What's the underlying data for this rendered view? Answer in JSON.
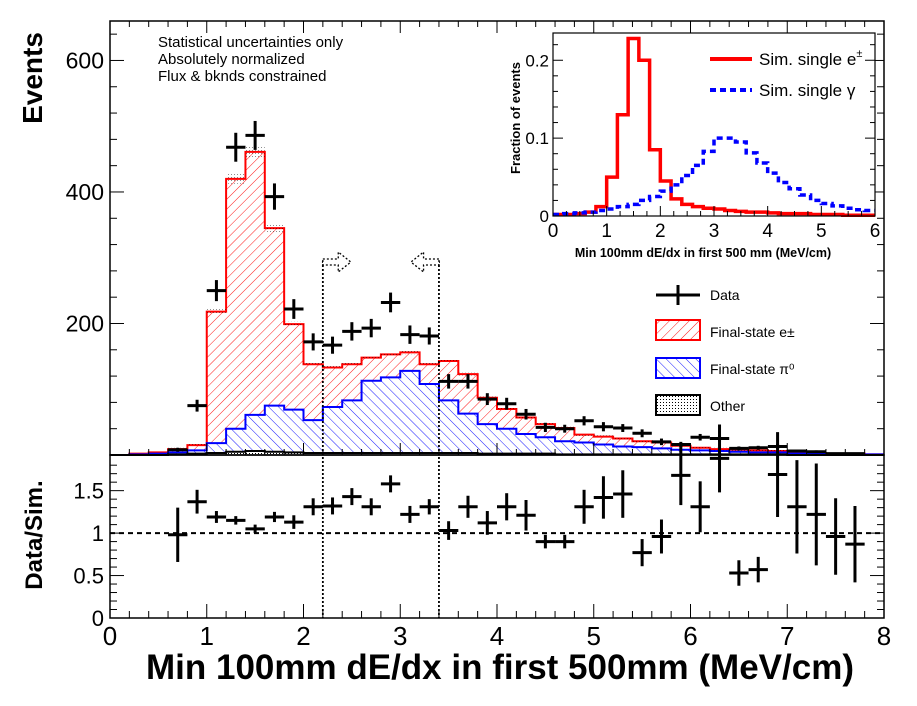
{
  "chart_data": [
    {
      "type": "bar",
      "name": "main",
      "xlabel": "",
      "ylabel": "Events",
      "xlim": [
        0,
        8
      ],
      "ylim": [
        0,
        660
      ],
      "yticks": [
        200,
        400,
        600
      ],
      "annotations": [
        "Statistical uncertainties only",
        "Absolutely normalized",
        "Flux & bknds constrained"
      ],
      "bin_edges": [
        0.0,
        0.2,
        0.4,
        0.6,
        0.8,
        1.0,
        1.2,
        1.4,
        1.6,
        1.8,
        2.0,
        2.2,
        2.4,
        2.6,
        2.8,
        3.0,
        3.2,
        3.4,
        3.6,
        3.8,
        4.0,
        4.2,
        4.4,
        4.6,
        4.8,
        5.0,
        5.2,
        5.4,
        5.6,
        5.8,
        6.0,
        6.2,
        6.4,
        6.6,
        6.8,
        7.0,
        7.2,
        7.4,
        7.6,
        7.8,
        8.0
      ],
      "stack": [
        {
          "name": "Other",
          "values": [
            0,
            0,
            0,
            1,
            2,
            3,
            5,
            6,
            5,
            4,
            3,
            3,
            3,
            3,
            3,
            3,
            3,
            3,
            3,
            2,
            2,
            2,
            2,
            1,
            1,
            1,
            1,
            1,
            1,
            1,
            1,
            1,
            1,
            1,
            1,
            0,
            0,
            0,
            0,
            0
          ]
        },
        {
          "name": "Final-state π⁰",
          "values": [
            0,
            1,
            2,
            3,
            5,
            15,
            35,
            55,
            70,
            65,
            50,
            70,
            80,
            110,
            115,
            125,
            105,
            80,
            60,
            45,
            38,
            30,
            25,
            20,
            18,
            15,
            12,
            11,
            9,
            7,
            6,
            5,
            4,
            3,
            3,
            2,
            2,
            1,
            1,
            1
          ]
        },
        {
          "name": "Final-state e±",
          "values": [
            0,
            1,
            2,
            5,
            8,
            200,
            380,
            400,
            270,
            130,
            85,
            60,
            55,
            35,
            35,
            28,
            30,
            60,
            60,
            40,
            30,
            25,
            20,
            20,
            12,
            12,
            12,
            9,
            9,
            6,
            4,
            3,
            3,
            3,
            2,
            2,
            1,
            1,
            1,
            0
          ]
        }
      ],
      "total_mc": [
        0,
        2,
        4,
        9,
        15,
        218,
        420,
        461,
        345,
        199,
        138,
        133,
        138,
        148,
        153,
        156,
        138,
        143,
        123,
        87,
        70,
        57,
        47,
        41,
        31,
        28,
        25,
        21,
        19,
        14,
        11,
        9,
        8,
        7,
        6,
        4,
        3,
        2,
        2,
        1
      ],
      "data_points": {
        "x": [
          0.7,
          0.9,
          1.1,
          1.3,
          1.5,
          1.7,
          1.9,
          2.1,
          2.3,
          2.5,
          2.7,
          2.9,
          3.1,
          3.3,
          3.5,
          3.7,
          3.9,
          4.1,
          4.3,
          4.5,
          4.7,
          4.9,
          5.1,
          5.3,
          5.5,
          5.7,
          5.9,
          6.1,
          6.3,
          6.5,
          6.7,
          6.9,
          7.1,
          7.3,
          7.5,
          7.7
        ],
        "y": [
          8,
          75,
          250,
          468,
          486,
          393,
          222,
          172,
          167,
          188,
          193,
          232,
          183,
          181,
          112,
          112,
          85,
          78,
          62,
          42,
          40,
          52,
          43,
          41,
          33,
          20,
          16,
          27,
          25,
          10,
          11,
          13,
          6,
          5,
          2,
          2
        ],
        "yerr": [
          3,
          9,
          16,
          22,
          22,
          20,
          15,
          13,
          13,
          14,
          14,
          15,
          14,
          13,
          11,
          11,
          9,
          9,
          8,
          7,
          6,
          7,
          7,
          6,
          6,
          5,
          4,
          5,
          5,
          3,
          3,
          4,
          2,
          2,
          1,
          1
        ]
      },
      "legend": {
        "position": "right",
        "entries": [
          "Data",
          "Final-state e±",
          "Final-state π⁰",
          "Other"
        ]
      },
      "arrows": [
        2.2,
        3.4
      ]
    },
    {
      "type": "scatter",
      "name": "ratio",
      "xlabel": "Min 100mm dE/dx in first 500mm (MeV/cm)",
      "ylabel": "Data/Sim.",
      "xlim": [
        0,
        8
      ],
      "ylim": [
        0,
        1.92
      ],
      "yticks": [
        0,
        0.5,
        1,
        1.5
      ],
      "ytick_labels": [
        "0",
        "0.5",
        "1",
        "1.5"
      ],
      "xticks": [
        0,
        1,
        2,
        3,
        4,
        5,
        6,
        7,
        8
      ],
      "reference_line": 1,
      "x": [
        0.7,
        0.9,
        1.1,
        1.3,
        1.5,
        1.7,
        1.9,
        2.1,
        2.3,
        2.5,
        2.7,
        2.9,
        3.1,
        3.3,
        3.5,
        3.7,
        3.9,
        4.1,
        4.3,
        4.5,
        4.7,
        4.9,
        5.1,
        5.3,
        5.5,
        5.7,
        5.9,
        6.1,
        6.3,
        6.5,
        6.7,
        6.9,
        7.1,
        7.3,
        7.5,
        7.7
      ],
      "y": [
        0.98,
        1.37,
        1.19,
        1.15,
        1.05,
        1.19,
        1.13,
        1.31,
        1.32,
        1.43,
        1.31,
        1.58,
        1.22,
        1.31,
        1.03,
        1.31,
        1.12,
        1.31,
        1.21,
        0.9,
        0.9,
        1.31,
        1.42,
        1.46,
        0.77,
        0.96,
        1.68,
        1.31,
        1.88,
        0.53,
        0.57,
        1.69,
        1.31,
        1.22,
        0.96,
        0.87
      ],
      "yerr": [
        0.32,
        0.14,
        0.07,
        0.05,
        0.05,
        0.06,
        0.08,
        0.1,
        0.1,
        0.1,
        0.1,
        0.1,
        0.1,
        0.09,
        0.11,
        0.13,
        0.14,
        0.16,
        0.18,
        0.08,
        0.08,
        0.2,
        0.25,
        0.28,
        0.16,
        0.2,
        0.35,
        0.3,
        0.4,
        0.15,
        0.15,
        0.5,
        0.55,
        0.6,
        0.45,
        0.45
      ]
    },
    {
      "type": "line",
      "name": "inset",
      "xlabel": "Min 100mm dE/dx in first 500 mm (MeV/cm)",
      "ylabel": "Fraction of events",
      "xlim": [
        0,
        6
      ],
      "ylim": [
        0,
        0.235
      ],
      "xticks": [
        0,
        1,
        2,
        3,
        4,
        5,
        6
      ],
      "yticks": [
        0,
        0.1,
        0.2
      ],
      "ytick_labels": [
        "0",
        "0.1",
        "0.2"
      ],
      "bin_edges": [
        0.0,
        0.2,
        0.4,
        0.6,
        0.8,
        1.0,
        1.2,
        1.4,
        1.6,
        1.8,
        2.0,
        2.2,
        2.4,
        2.6,
        2.8,
        3.0,
        3.2,
        3.4,
        3.6,
        3.8,
        4.0,
        4.2,
        4.4,
        4.6,
        4.8,
        5.0,
        5.2,
        5.4,
        5.6,
        5.8,
        6.0
      ],
      "series": [
        {
          "name": "Sim. single e±",
          "legend_label": "Sim. single e",
          "legend_sup": "±",
          "color": "#ff0000",
          "style": "solid",
          "values": [
            0.002,
            0.002,
            0.003,
            0.005,
            0.012,
            0.05,
            0.13,
            0.228,
            0.2,
            0.085,
            0.045,
            0.022,
            0.015,
            0.012,
            0.01,
            0.009,
            0.007,
            0.006,
            0.005,
            0.005,
            0.004,
            0.003,
            0.003,
            0.003,
            0.002,
            0.002,
            0.002,
            0.001,
            0.001,
            0.001
          ]
        },
        {
          "name": "Sim. single γ",
          "legend_label": "Sim. single γ",
          "legend_sup": "",
          "color": "#0000ff",
          "style": "dashed",
          "values": [
            0.002,
            0.003,
            0.004,
            0.005,
            0.007,
            0.009,
            0.012,
            0.015,
            0.02,
            0.025,
            0.032,
            0.04,
            0.052,
            0.065,
            0.083,
            0.1,
            0.1,
            0.095,
            0.081,
            0.068,
            0.055,
            0.043,
            0.035,
            0.027,
            0.02,
            0.016,
            0.013,
            0.01,
            0.008,
            0.007
          ]
        }
      ]
    }
  ],
  "colors": {
    "electron": "#ff0000",
    "pion": "#0000ff",
    "data": "#000000"
  }
}
